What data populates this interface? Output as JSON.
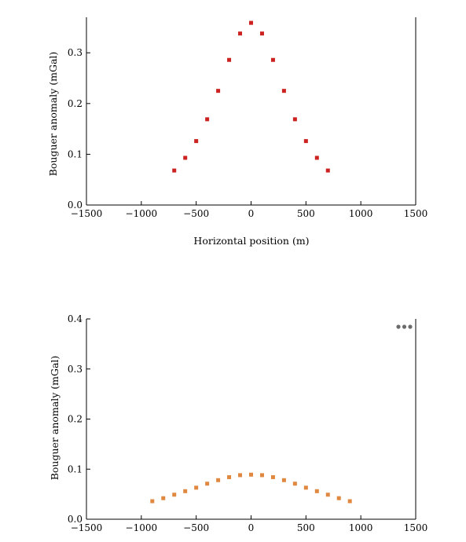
{
  "chart_data": [
    {
      "type": "scatter",
      "title": "",
      "xlabel": "Horizontal position (m)",
      "ylabel": "Bouguer anomaly (mGal)",
      "xlim": [
        -1500,
        1500
      ],
      "ylim": [
        0.0,
        0.37
      ],
      "xticks": [
        -1500,
        -1000,
        -500,
        0,
        500,
        1000,
        1500
      ],
      "xtick_labels": [
        "−1500",
        "−1000",
        "−500",
        "0",
        "500",
        "1000",
        "1500"
      ],
      "yticks": [
        0.0,
        0.1,
        0.2,
        0.3
      ],
      "ytick_labels": [
        "0.0",
        "0.1",
        "0.2",
        "0.3"
      ],
      "grid": false,
      "marker_color": "#cc2222",
      "series": [
        {
          "x": [
            -700,
            -600,
            -500,
            -400,
            -300,
            -200,
            -100,
            0,
            100,
            200,
            300,
            400,
            500,
            600,
            700
          ],
          "y": [
            0.068,
            0.093,
            0.126,
            0.169,
            0.225,
            0.286,
            0.338,
            0.359,
            0.338,
            0.286,
            0.225,
            0.169,
            0.126,
            0.093,
            0.068
          ]
        }
      ]
    },
    {
      "type": "scatter",
      "title": "",
      "xlabel": "",
      "ylabel": "Bouguer anomaly (mGal)",
      "xlim": [
        -1500,
        1500
      ],
      "ylim": [
        0.0,
        0.4
      ],
      "xticks": [
        -1500,
        -1000,
        -500,
        0,
        500,
        1000,
        1500
      ],
      "xtick_labels": [
        "−1500",
        "−1000",
        "−500",
        "0",
        "500",
        "1000",
        "1500"
      ],
      "yticks": [
        0.0,
        0.1,
        0.2,
        0.3,
        0.4
      ],
      "ytick_labels": [
        "0.0",
        "0.1",
        "0.2",
        "0.3",
        "0.4"
      ],
      "grid": false,
      "marker_color": "#e08840",
      "series": [
        {
          "x": [
            -900,
            -800,
            -700,
            -600,
            -500,
            -400,
            -300,
            -200,
            -100,
            0,
            100,
            200,
            300,
            400,
            500,
            600,
            700,
            800,
            900
          ],
          "y": [
            0.036,
            0.042,
            0.049,
            0.056,
            0.063,
            0.071,
            0.078,
            0.084,
            0.088,
            0.089,
            0.088,
            0.084,
            0.078,
            0.071,
            0.063,
            0.056,
            0.049,
            0.042,
            0.036
          ]
        }
      ]
    }
  ],
  "more_icon": "ellipsis-icon"
}
